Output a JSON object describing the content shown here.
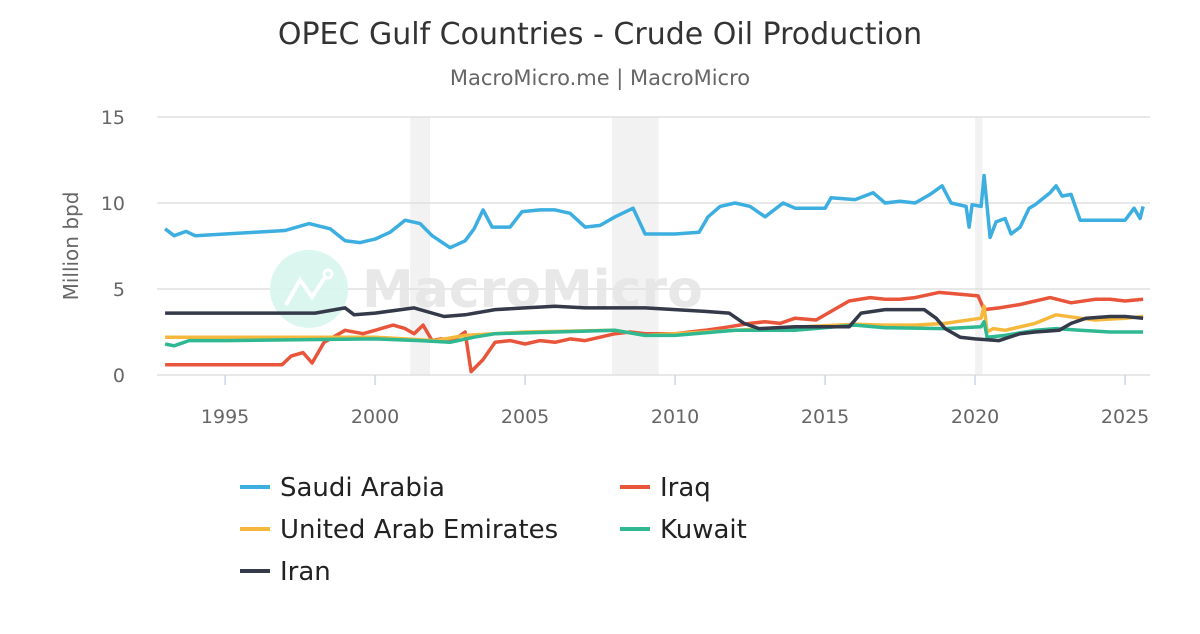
{
  "chart_data": {
    "type": "line",
    "title": "OPEC Gulf Countries - Crude Oil Production",
    "subtitle": "MacroMicro.me | MacroMicro",
    "watermark": "MacroMicro",
    "ylabel": "Million bpd",
    "xlabel": "",
    "xlim": [
      1992.73,
      2025.83
    ],
    "ylim": [
      0,
      15
    ],
    "yticks": [
      0,
      5,
      10,
      15
    ],
    "xticks": [
      1995,
      2000,
      2005,
      2010,
      2015,
      2020,
      2025
    ],
    "grid": true,
    "legend_position": "bottom",
    "shaded_periods": [
      [
        2001.17,
        2001.83
      ],
      [
        2007.9,
        2009.45
      ],
      [
        2020.0,
        2020.25
      ]
    ],
    "series": [
      {
        "name": "Saudi Arabia",
        "color": "#3daee0",
        "points": [
          [
            1993.0,
            8.5
          ],
          [
            1993.3,
            8.1
          ],
          [
            1993.7,
            8.35
          ],
          [
            1994,
            8.1
          ],
          [
            1995,
            8.2
          ],
          [
            1996,
            8.3
          ],
          [
            1997,
            8.4
          ],
          [
            1997.8,
            8.8
          ],
          [
            1998.5,
            8.5
          ],
          [
            1999,
            7.8
          ],
          [
            1999.5,
            7.7
          ],
          [
            2000,
            7.9
          ],
          [
            2000.5,
            8.3
          ],
          [
            2001,
            9.0
          ],
          [
            2001.5,
            8.8
          ],
          [
            2001.9,
            8.1
          ],
          [
            2002.5,
            7.4
          ],
          [
            2003,
            7.8
          ],
          [
            2003.3,
            8.5
          ],
          [
            2003.6,
            9.6
          ],
          [
            2003.9,
            8.6
          ],
          [
            2004.5,
            8.6
          ],
          [
            2004.9,
            9.5
          ],
          [
            2005.5,
            9.6
          ],
          [
            2006,
            9.6
          ],
          [
            2006.5,
            9.4
          ],
          [
            2007,
            8.6
          ],
          [
            2007.5,
            8.7
          ],
          [
            2008,
            9.2
          ],
          [
            2008.6,
            9.7
          ],
          [
            2009,
            8.2
          ],
          [
            2009.6,
            8.2
          ],
          [
            2010,
            8.2
          ],
          [
            2010.8,
            8.3
          ],
          [
            2011.1,
            9.2
          ],
          [
            2011.5,
            9.8
          ],
          [
            2012,
            10.0
          ],
          [
            2012.5,
            9.8
          ],
          [
            2013,
            9.2
          ],
          [
            2013.6,
            10.0
          ],
          [
            2014,
            9.7
          ],
          [
            2015,
            9.7
          ],
          [
            2015.2,
            10.3
          ],
          [
            2016,
            10.2
          ],
          [
            2016.6,
            10.6
          ],
          [
            2017,
            10.0
          ],
          [
            2017.5,
            10.1
          ],
          [
            2018,
            10.0
          ],
          [
            2018.5,
            10.5
          ],
          [
            2018.9,
            11.0
          ],
          [
            2019.2,
            10.0
          ],
          [
            2019.7,
            9.8
          ],
          [
            2019.8,
            8.6
          ],
          [
            2019.9,
            9.9
          ],
          [
            2020.2,
            9.8
          ],
          [
            2020.3,
            11.6
          ],
          [
            2020.5,
            8.0
          ],
          [
            2020.7,
            8.9
          ],
          [
            2021,
            9.1
          ],
          [
            2021.2,
            8.2
          ],
          [
            2021.5,
            8.6
          ],
          [
            2021.8,
            9.7
          ],
          [
            2022,
            9.9
          ],
          [
            2022.5,
            10.6
          ],
          [
            2022.7,
            11.0
          ],
          [
            2022.9,
            10.4
          ],
          [
            2023.2,
            10.5
          ],
          [
            2023.5,
            9.0
          ],
          [
            2024,
            9.0
          ],
          [
            2024.5,
            9.0
          ],
          [
            2025,
            9.0
          ],
          [
            2025.3,
            9.7
          ],
          [
            2025.5,
            9.1
          ],
          [
            2025.6,
            9.8
          ]
        ]
      },
      {
        "name": "Iraq",
        "color": "#e8553a",
        "points": [
          [
            1993,
            0.6
          ],
          [
            1996.9,
            0.6
          ],
          [
            1997.2,
            1.1
          ],
          [
            1997.6,
            1.3
          ],
          [
            1997.9,
            0.7
          ],
          [
            1998.3,
            1.9
          ],
          [
            1998.6,
            2.2
          ],
          [
            1999,
            2.6
          ],
          [
            1999.6,
            2.4
          ],
          [
            2000,
            2.6
          ],
          [
            2000.6,
            2.9
          ],
          [
            2001,
            2.7
          ],
          [
            2001.3,
            2.4
          ],
          [
            2001.6,
            2.9
          ],
          [
            2001.9,
            2.0
          ],
          [
            2002.2,
            2.1
          ],
          [
            2002.6,
            2.0
          ],
          [
            2003,
            2.5
          ],
          [
            2003.2,
            0.2
          ],
          [
            2003.6,
            0.9
          ],
          [
            2004,
            1.9
          ],
          [
            2004.5,
            2.0
          ],
          [
            2005,
            1.8
          ],
          [
            2005.5,
            2.0
          ],
          [
            2006,
            1.9
          ],
          [
            2006.5,
            2.1
          ],
          [
            2007,
            2.0
          ],
          [
            2007.5,
            2.2
          ],
          [
            2008,
            2.4
          ],
          [
            2008.5,
            2.5
          ],
          [
            2009,
            2.4
          ],
          [
            2010,
            2.4
          ],
          [
            2011,
            2.6
          ],
          [
            2011.8,
            2.8
          ],
          [
            2012.5,
            3.0
          ],
          [
            2013,
            3.1
          ],
          [
            2013.5,
            3.0
          ],
          [
            2014,
            3.3
          ],
          [
            2014.7,
            3.2
          ],
          [
            2015.3,
            3.8
          ],
          [
            2015.8,
            4.3
          ],
          [
            2016.5,
            4.5
          ],
          [
            2017,
            4.4
          ],
          [
            2017.5,
            4.4
          ],
          [
            2018,
            4.5
          ],
          [
            2018.8,
            4.8
          ],
          [
            2019.5,
            4.7
          ],
          [
            2020.1,
            4.6
          ],
          [
            2020.3,
            3.8
          ],
          [
            2020.8,
            3.9
          ],
          [
            2021.5,
            4.1
          ],
          [
            2022.5,
            4.5
          ],
          [
            2023.2,
            4.2
          ],
          [
            2024,
            4.4
          ],
          [
            2024.5,
            4.4
          ],
          [
            2025,
            4.3
          ],
          [
            2025.6,
            4.4
          ]
        ]
      },
      {
        "name": "United Arab Emirates",
        "color": "#f5b83d",
        "points": [
          [
            1993,
            2.2
          ],
          [
            1995,
            2.2
          ],
          [
            2000,
            2.2
          ],
          [
            2002,
            2.0
          ],
          [
            2003,
            2.3
          ],
          [
            2005,
            2.5
          ],
          [
            2008,
            2.6
          ],
          [
            2009,
            2.3
          ],
          [
            2011,
            2.5
          ],
          [
            2013,
            2.7
          ],
          [
            2016,
            2.95
          ],
          [
            2017,
            2.9
          ],
          [
            2018,
            2.9
          ],
          [
            2019,
            3.0
          ],
          [
            2020.2,
            3.3
          ],
          [
            2020.3,
            4.0
          ],
          [
            2020.4,
            2.5
          ],
          [
            2020.6,
            2.7
          ],
          [
            2021,
            2.6
          ],
          [
            2022,
            3.0
          ],
          [
            2022.7,
            3.5
          ],
          [
            2023.5,
            3.3
          ],
          [
            2024,
            3.2
          ],
          [
            2025,
            3.3
          ],
          [
            2025.6,
            3.4
          ]
        ]
      },
      {
        "name": "Kuwait",
        "color": "#2fb892",
        "points": [
          [
            1993,
            1.8
          ],
          [
            1993.3,
            1.7
          ],
          [
            1993.8,
            2.0
          ],
          [
            1995,
            2.0
          ],
          [
            2000,
            2.1
          ],
          [
            2001.5,
            2.0
          ],
          [
            2002.5,
            1.9
          ],
          [
            2003.3,
            2.2
          ],
          [
            2004,
            2.4
          ],
          [
            2006,
            2.5
          ],
          [
            2008,
            2.6
          ],
          [
            2009,
            2.3
          ],
          [
            2010,
            2.3
          ],
          [
            2012,
            2.6
          ],
          [
            2014,
            2.6
          ],
          [
            2016,
            2.9
          ],
          [
            2017,
            2.75
          ],
          [
            2019,
            2.7
          ],
          [
            2020.2,
            2.8
          ],
          [
            2020.3,
            3.1
          ],
          [
            2020.4,
            2.2
          ],
          [
            2021,
            2.3
          ],
          [
            2022,
            2.6
          ],
          [
            2022.7,
            2.7
          ],
          [
            2023.5,
            2.6
          ],
          [
            2024.5,
            2.5
          ],
          [
            2025.6,
            2.5
          ]
        ]
      },
      {
        "name": "Iran",
        "color": "#353a4a",
        "points": [
          [
            1993,
            3.6
          ],
          [
            1995,
            3.6
          ],
          [
            1998,
            3.6
          ],
          [
            1999,
            3.9
          ],
          [
            1999.3,
            3.5
          ],
          [
            2000,
            3.6
          ],
          [
            2001.3,
            3.9
          ],
          [
            2002.3,
            3.4
          ],
          [
            2003,
            3.5
          ],
          [
            2004,
            3.8
          ],
          [
            2005,
            3.9
          ],
          [
            2006,
            4.0
          ],
          [
            2007,
            3.9
          ],
          [
            2008,
            3.9
          ],
          [
            2009,
            3.9
          ],
          [
            2010,
            3.8
          ],
          [
            2011,
            3.7
          ],
          [
            2011.8,
            3.6
          ],
          [
            2012.3,
            3.0
          ],
          [
            2012.8,
            2.7
          ],
          [
            2014,
            2.8
          ],
          [
            2015.8,
            2.8
          ],
          [
            2016.2,
            3.6
          ],
          [
            2017,
            3.8
          ],
          [
            2018.3,
            3.8
          ],
          [
            2018.7,
            3.3
          ],
          [
            2019,
            2.7
          ],
          [
            2019.5,
            2.2
          ],
          [
            2020,
            2.1
          ],
          [
            2020.8,
            2.0
          ],
          [
            2021.5,
            2.4
          ],
          [
            2022,
            2.5
          ],
          [
            2022.8,
            2.6
          ],
          [
            2023.2,
            3.0
          ],
          [
            2023.7,
            3.3
          ],
          [
            2024.5,
            3.4
          ],
          [
            2025,
            3.4
          ],
          [
            2025.6,
            3.3
          ]
        ]
      }
    ],
    "legend_order": [
      0,
      1,
      2,
      3,
      4
    ]
  }
}
